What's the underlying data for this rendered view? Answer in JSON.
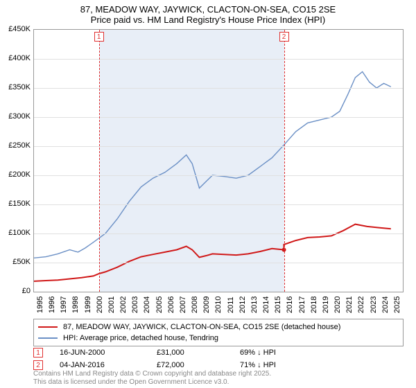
{
  "title_line1": "87, MEADOW WAY, JAYWICK, CLACTON-ON-SEA, CO15 2SE",
  "title_line2": "Price paid vs. HM Land Registry's House Price Index (HPI)",
  "chart": {
    "type": "line",
    "x_start": 1995,
    "x_end": 2026,
    "xticks": [
      1995,
      1996,
      1997,
      1998,
      1999,
      2000,
      2001,
      2002,
      2003,
      2004,
      2005,
      2006,
      2007,
      2008,
      2009,
      2010,
      2011,
      2012,
      2013,
      2014,
      2015,
      2016,
      2017,
      2018,
      2019,
      2020,
      2021,
      2022,
      2023,
      2024,
      2025
    ],
    "ylim": [
      0,
      450
    ],
    "yticks": [
      0,
      50,
      100,
      150,
      200,
      250,
      300,
      350,
      400,
      450
    ],
    "ytick_labels": [
      "£0",
      "£50K",
      "£100K",
      "£150K",
      "£200K",
      "£250K",
      "£300K",
      "£350K",
      "£400K",
      "£450K"
    ],
    "grid_color": "#e0e0e0",
    "background_color": "#ffffff",
    "shade_color": "#e8eef7",
    "shade_start": 2000.46,
    "shade_end": 2016.01,
    "series": [
      {
        "name": "hpi",
        "label": "HPI: Average price, detached house, Tendring",
        "color": "#6a8fc5",
        "width": 1.4,
        "data": [
          [
            1995,
            58
          ],
          [
            1996,
            60
          ],
          [
            1997,
            65
          ],
          [
            1998,
            72
          ],
          [
            1998.7,
            68
          ],
          [
            1999.3,
            75
          ],
          [
            2000,
            85
          ],
          [
            2001,
            100
          ],
          [
            2002,
            125
          ],
          [
            2003,
            155
          ],
          [
            2004,
            180
          ],
          [
            2005,
            195
          ],
          [
            2006,
            205
          ],
          [
            2007,
            220
          ],
          [
            2007.8,
            235
          ],
          [
            2008.3,
            220
          ],
          [
            2008.9,
            178
          ],
          [
            2009.5,
            190
          ],
          [
            2010,
            200
          ],
          [
            2011,
            198
          ],
          [
            2012,
            195
          ],
          [
            2013,
            200
          ],
          [
            2014,
            215
          ],
          [
            2015,
            230
          ],
          [
            2016,
            252
          ],
          [
            2017,
            275
          ],
          [
            2018,
            290
          ],
          [
            2019,
            295
          ],
          [
            2020,
            300
          ],
          [
            2020.7,
            310
          ],
          [
            2021.4,
            340
          ],
          [
            2022,
            368
          ],
          [
            2022.6,
            378
          ],
          [
            2023.2,
            360
          ],
          [
            2023.8,
            350
          ],
          [
            2024.4,
            358
          ],
          [
            2025,
            352
          ]
        ]
      },
      {
        "name": "property",
        "label": "87, MEADOW WAY, JAYWICK, CLACTON-ON-SEA, CO15 2SE (detached house)",
        "color": "#d01818",
        "width": 2,
        "data": [
          [
            1995,
            18
          ],
          [
            1996,
            19
          ],
          [
            1997,
            20
          ],
          [
            1998,
            22
          ],
          [
            1999,
            24
          ],
          [
            2000,
            27
          ],
          [
            2000.46,
            31
          ],
          [
            2001,
            34
          ],
          [
            2002,
            42
          ],
          [
            2003,
            52
          ],
          [
            2004,
            60
          ],
          [
            2005,
            64
          ],
          [
            2006,
            68
          ],
          [
            2007,
            72
          ],
          [
            2007.8,
            78
          ],
          [
            2008.3,
            72
          ],
          [
            2008.9,
            59
          ],
          [
            2009.5,
            62
          ],
          [
            2010,
            65
          ],
          [
            2011,
            64
          ],
          [
            2012,
            63
          ],
          [
            2013,
            65
          ],
          [
            2014,
            69
          ],
          [
            2015,
            74
          ],
          [
            2016.01,
            72
          ],
          [
            2016,
            81
          ],
          [
            2017,
            88
          ],
          [
            2018,
            93
          ],
          [
            2019,
            94
          ],
          [
            2020,
            96
          ],
          [
            2021,
            105
          ],
          [
            2022,
            116
          ],
          [
            2023,
            112
          ],
          [
            2024,
            110
          ],
          [
            2025,
            108
          ]
        ]
      }
    ],
    "sale_markers": [
      {
        "n": "1",
        "x": 2000.46,
        "date": "16-JUN-2000",
        "price": "£31,000",
        "pct": "69% ↓ HPI"
      },
      {
        "n": "2",
        "x": 2016.01,
        "date": "04-JAN-2016",
        "price": "£72,000",
        "pct": "71% ↓ HPI"
      }
    ],
    "sale_line_color": "#e03030"
  },
  "attribution_line1": "Contains HM Land Registry data © Crown copyright and database right 2025.",
  "attribution_line2": "This data is licensed under the Open Government Licence v3.0."
}
